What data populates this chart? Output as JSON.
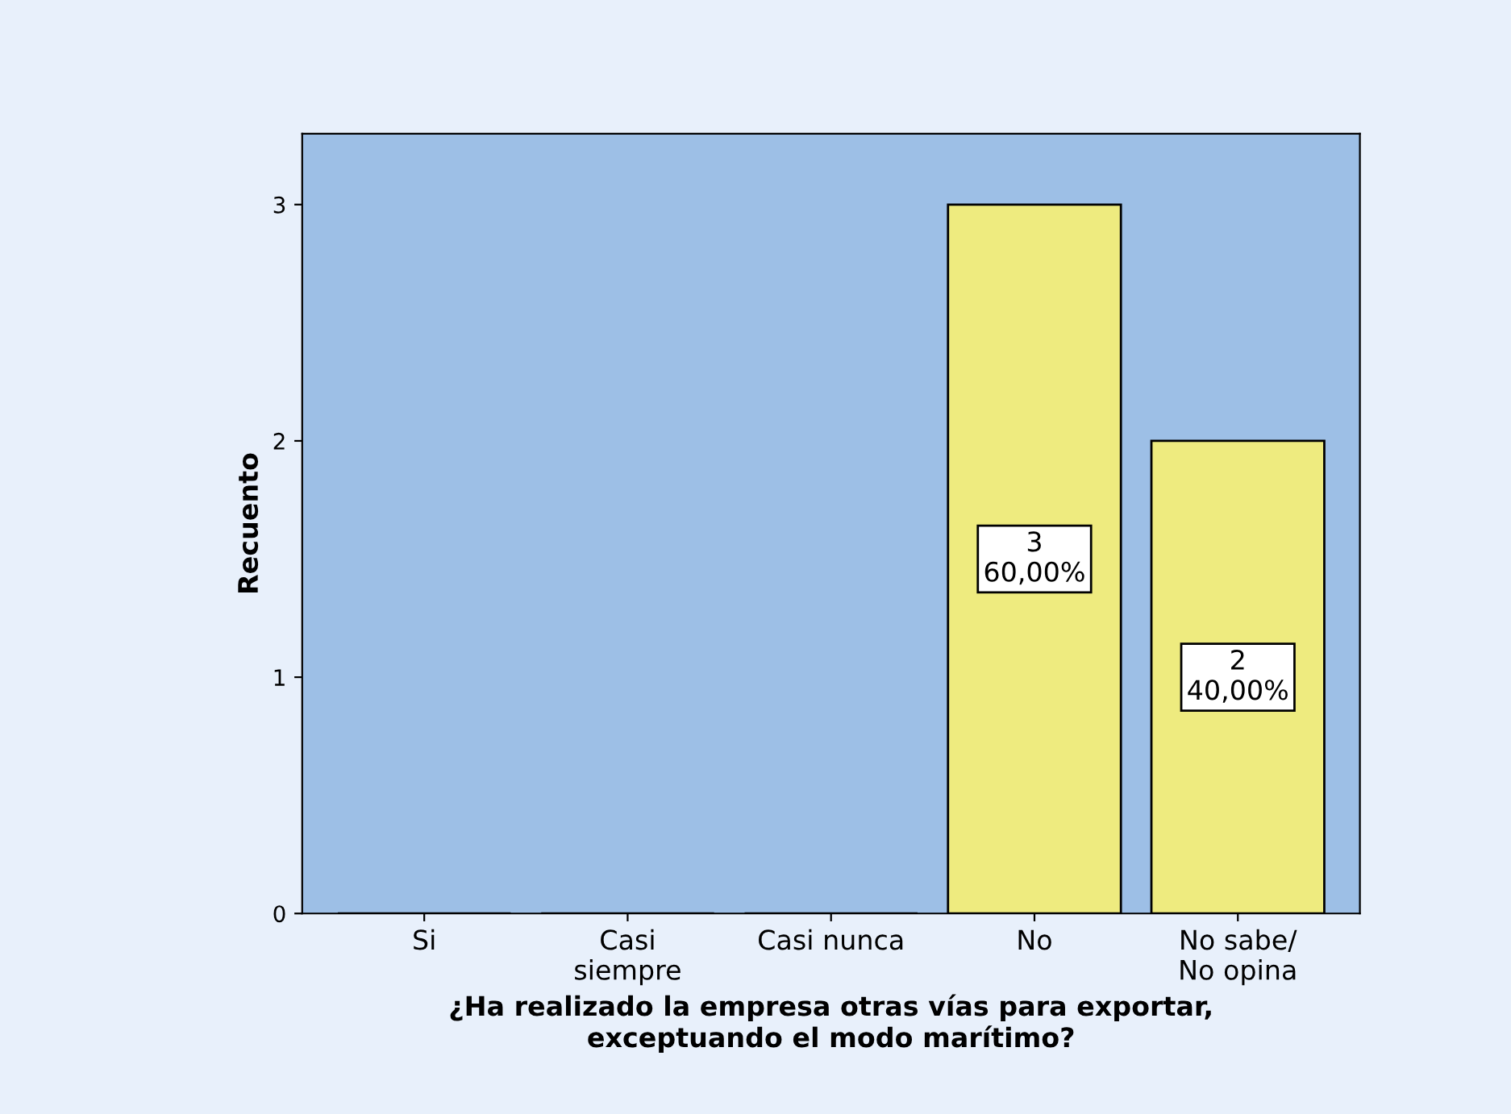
{
  "chart_data": {
    "type": "bar",
    "xlabel": "¿Ha realizado la empresa otras vías para exportar,\nexceptuando el modo marítimo?",
    "ylabel": "Recuento",
    "categories": [
      "Si",
      "Casi\nsiempre",
      "Casi nunca",
      "No",
      "No sabe/\nNo opina"
    ],
    "values": [
      0,
      0,
      0,
      3,
      2
    ],
    "value_labels": [
      null,
      null,
      null,
      "3\n60,00%",
      "2\n40,00%"
    ],
    "color": "#eeeb7f",
    "ylim": [
      0,
      3.3
    ],
    "yticks": [
      0,
      1,
      2,
      3
    ],
    "grid": false,
    "legend": false
  }
}
